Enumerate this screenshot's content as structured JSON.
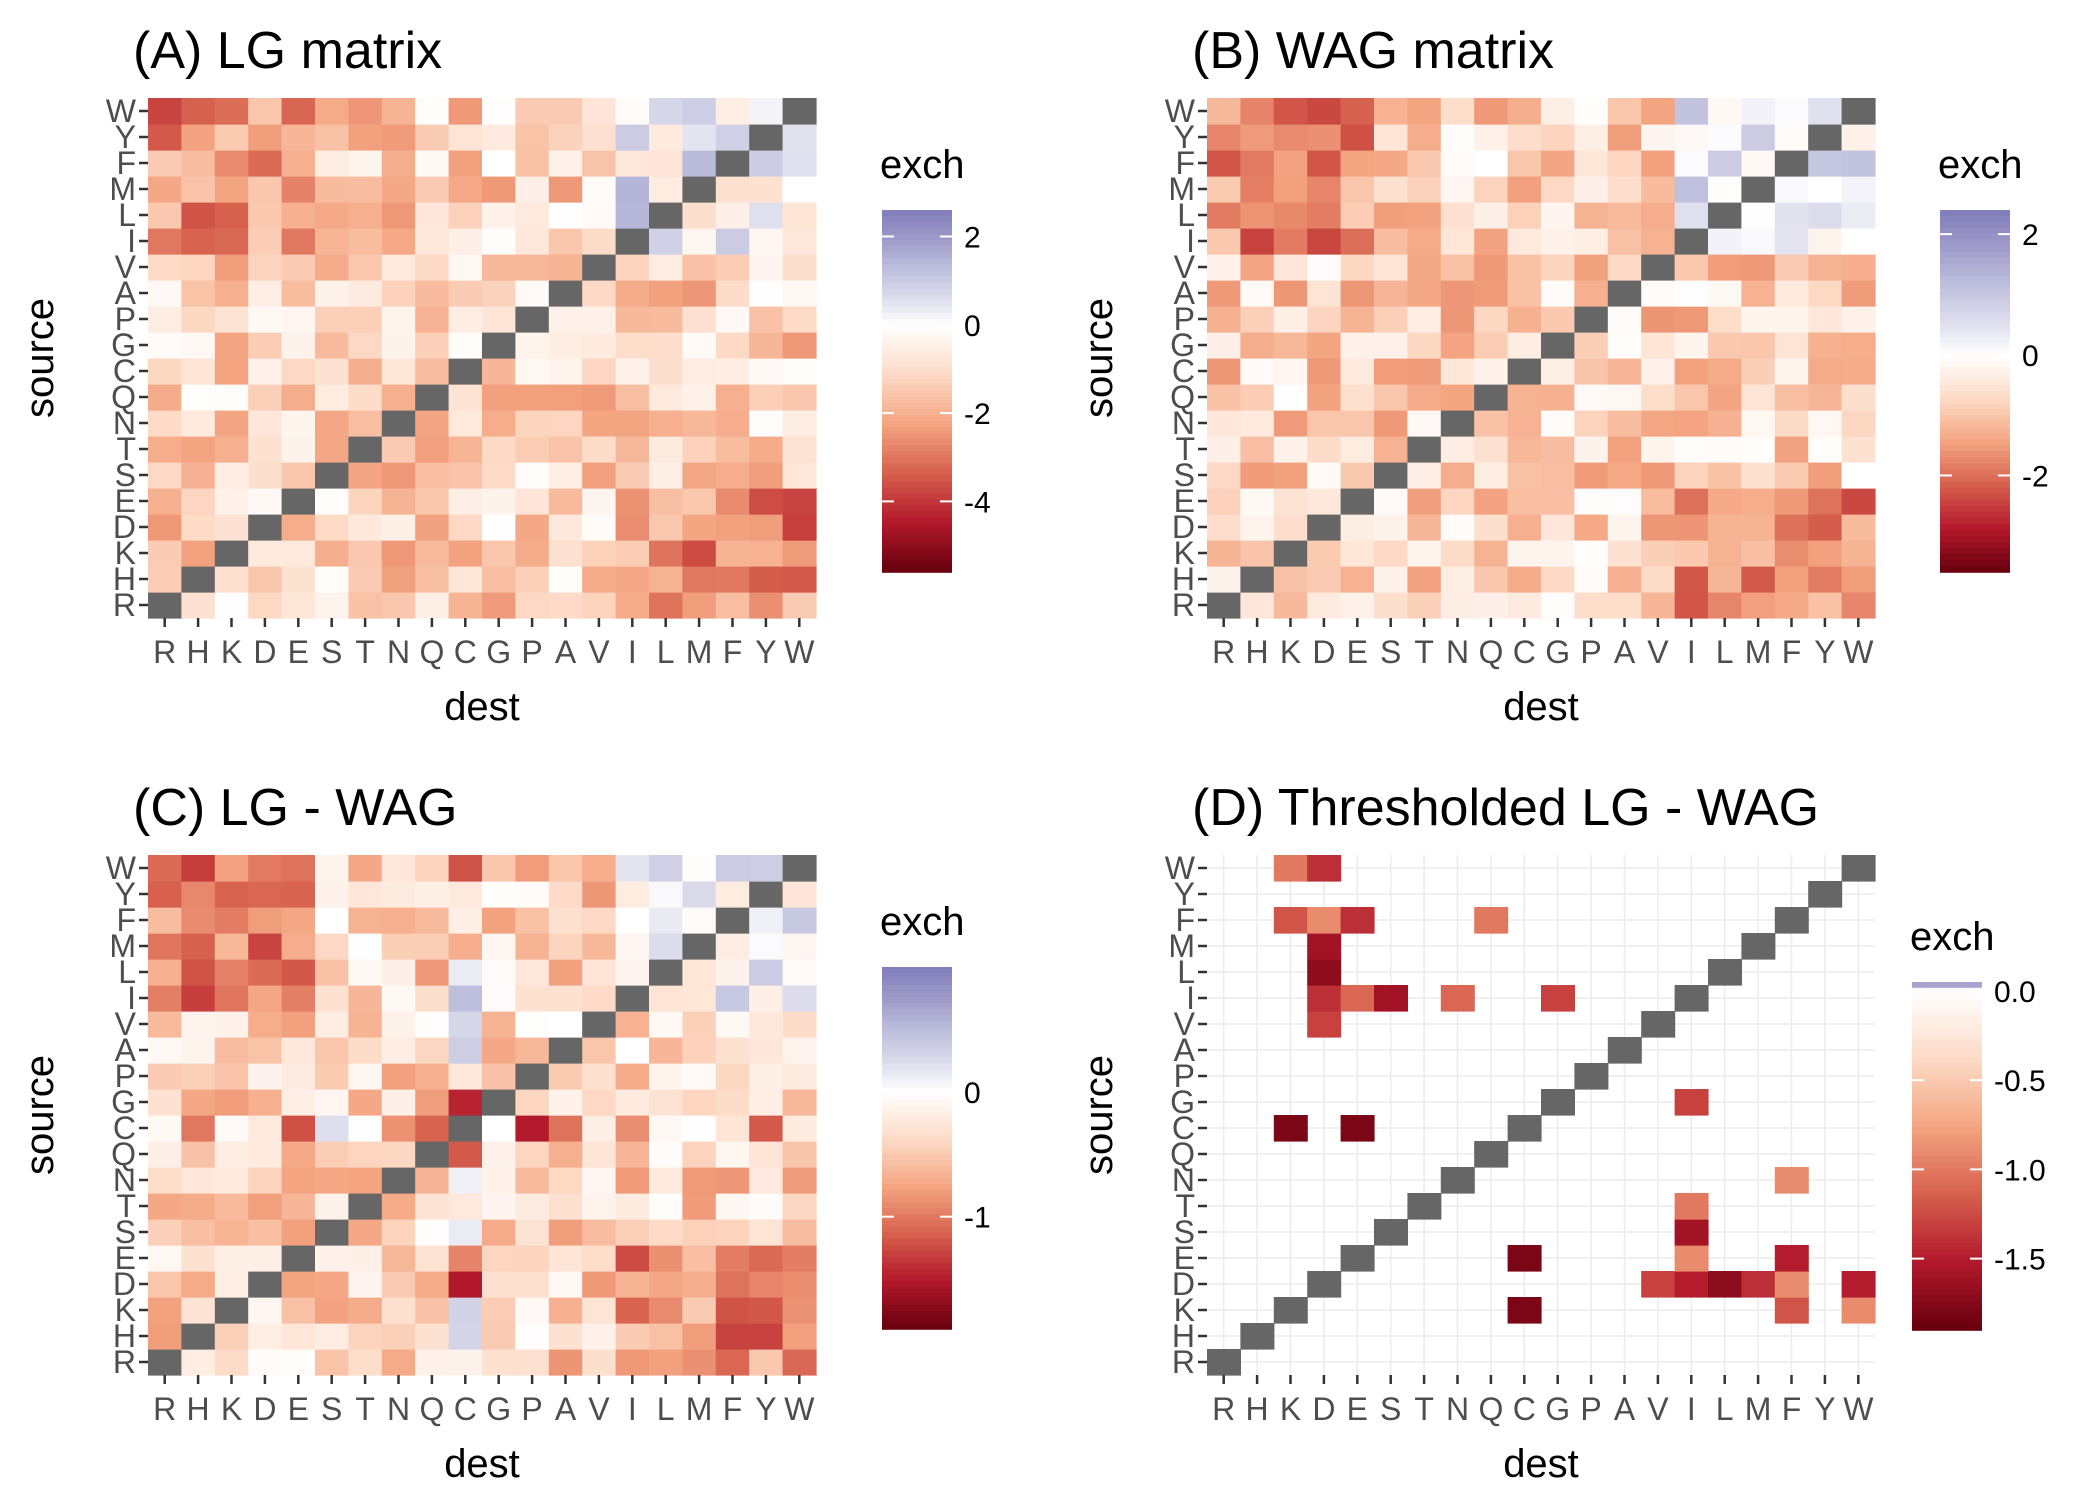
{
  "chart_data": [
    {
      "type": "heatmap",
      "title": "(A) LG matrix",
      "xlabel": "dest",
      "ylabel": "source",
      "x_categories": [
        "R",
        "H",
        "K",
        "D",
        "E",
        "S",
        "T",
        "N",
        "Q",
        "C",
        "G",
        "P",
        "A",
        "V",
        "I",
        "L",
        "M",
        "F",
        "Y",
        "W"
      ],
      "y_categories": [
        "R",
        "H",
        "K",
        "D",
        "E",
        "S",
        "T",
        "N",
        "Q",
        "C",
        "G",
        "P",
        "A",
        "V",
        "I",
        "L",
        "M",
        "F",
        "Y",
        "W"
      ],
      "legend": {
        "title": "exch",
        "ticks": [
          2,
          0,
          -2,
          -4
        ],
        "range": [
          -5.6,
          2.6
        ],
        "placement": "right"
      },
      "diagonal_color": "#666666",
      "grid": true
    },
    {
      "type": "heatmap",
      "title": "(B) WAG matrix",
      "xlabel": "dest",
      "ylabel": "source",
      "x_categories": [
        "R",
        "H",
        "K",
        "D",
        "E",
        "S",
        "T",
        "N",
        "Q",
        "C",
        "G",
        "P",
        "A",
        "V",
        "I",
        "L",
        "M",
        "F",
        "Y",
        "W"
      ],
      "y_categories": [
        "R",
        "H",
        "K",
        "D",
        "E",
        "S",
        "T",
        "N",
        "Q",
        "C",
        "G",
        "P",
        "A",
        "V",
        "I",
        "L",
        "M",
        "F",
        "Y",
        "W"
      ],
      "legend": {
        "title": "exch",
        "ticks": [
          2,
          0,
          -2
        ],
        "range": [
          -3.6,
          2.4
        ],
        "placement": "right"
      },
      "diagonal_color": "#666666",
      "grid": true
    },
    {
      "type": "heatmap",
      "title": "(C) LG - WAG",
      "xlabel": "dest",
      "ylabel": "source",
      "x_categories": [
        "R",
        "H",
        "K",
        "D",
        "E",
        "S",
        "T",
        "N",
        "Q",
        "C",
        "G",
        "P",
        "A",
        "V",
        "I",
        "L",
        "M",
        "F",
        "Y",
        "W"
      ],
      "y_categories": [
        "R",
        "H",
        "K",
        "D",
        "E",
        "S",
        "T",
        "N",
        "Q",
        "C",
        "G",
        "P",
        "A",
        "V",
        "I",
        "L",
        "M",
        "F",
        "Y",
        "W"
      ],
      "legend": {
        "title": "exch",
        "ticks": [
          0,
          -1
        ],
        "range": [
          -1.9,
          1.0
        ],
        "placement": "right"
      },
      "diagonal_color": "#666666",
      "grid": true
    },
    {
      "type": "heatmap",
      "title": "(D) Thresholded LG - WAG",
      "xlabel": "dest",
      "ylabel": "source",
      "x_categories": [
        "R",
        "H",
        "K",
        "D",
        "E",
        "S",
        "T",
        "N",
        "Q",
        "C",
        "G",
        "P",
        "A",
        "V",
        "I",
        "L",
        "M",
        "F",
        "Y",
        "W"
      ],
      "y_categories": [
        "R",
        "H",
        "K",
        "D",
        "E",
        "S",
        "T",
        "N",
        "Q",
        "C",
        "G",
        "P",
        "A",
        "V",
        "I",
        "L",
        "M",
        "F",
        "Y",
        "W"
      ],
      "legend": {
        "title": "exch",
        "ticks": [
          "0.0",
          "-0.5",
          "-1.0",
          "-1.5"
        ],
        "range": [
          -1.9,
          0.05
        ],
        "placement": "right"
      },
      "diagonal_color": "#666666",
      "grid": true,
      "cells": [
        {
          "source": "W",
          "dest": "K",
          "value": -1.0
        },
        {
          "source": "W",
          "dest": "D",
          "value": -1.4
        },
        {
          "source": "F",
          "dest": "K",
          "value": -1.2
        },
        {
          "source": "F",
          "dest": "D",
          "value": -0.9
        },
        {
          "source": "F",
          "dest": "E",
          "value": -1.4
        },
        {
          "source": "F",
          "dest": "Q",
          "value": -1.0
        },
        {
          "source": "M",
          "dest": "D",
          "value": -1.6
        },
        {
          "source": "L",
          "dest": "D",
          "value": -1.7
        },
        {
          "source": "I",
          "dest": "D",
          "value": -1.4
        },
        {
          "source": "I",
          "dest": "E",
          "value": -1.1
        },
        {
          "source": "I",
          "dest": "S",
          "value": -1.6
        },
        {
          "source": "I",
          "dest": "N",
          "value": -1.1
        },
        {
          "source": "I",
          "dest": "G",
          "value": -1.3
        },
        {
          "source": "V",
          "dest": "D",
          "value": -1.3
        },
        {
          "source": "G",
          "dest": "I",
          "value": -1.3
        },
        {
          "source": "C",
          "dest": "K",
          "value": -1.8
        },
        {
          "source": "C",
          "dest": "E",
          "value": -1.8
        },
        {
          "source": "N",
          "dest": "F",
          "value": -0.9
        },
        {
          "source": "T",
          "dest": "I",
          "value": -1.0
        },
        {
          "source": "S",
          "dest": "I",
          "value": -1.6
        },
        {
          "source": "E",
          "dest": "C",
          "value": -1.8
        },
        {
          "source": "E",
          "dest": "I",
          "value": -0.9
        },
        {
          "source": "E",
          "dest": "F",
          "value": -1.5
        },
        {
          "source": "D",
          "dest": "V",
          "value": -1.3
        },
        {
          "source": "D",
          "dest": "I",
          "value": -1.5
        },
        {
          "source": "D",
          "dest": "L",
          "value": -1.7
        },
        {
          "source": "D",
          "dest": "M",
          "value": -1.4
        },
        {
          "source": "D",
          "dest": "F",
          "value": -0.9
        },
        {
          "source": "D",
          "dest": "W",
          "value": -1.5
        },
        {
          "source": "K",
          "dest": "C",
          "value": -1.8
        },
        {
          "source": "K",
          "dest": "F",
          "value": -1.2
        },
        {
          "source": "K",
          "dest": "W",
          "value": -0.9
        }
      ]
    }
  ]
}
